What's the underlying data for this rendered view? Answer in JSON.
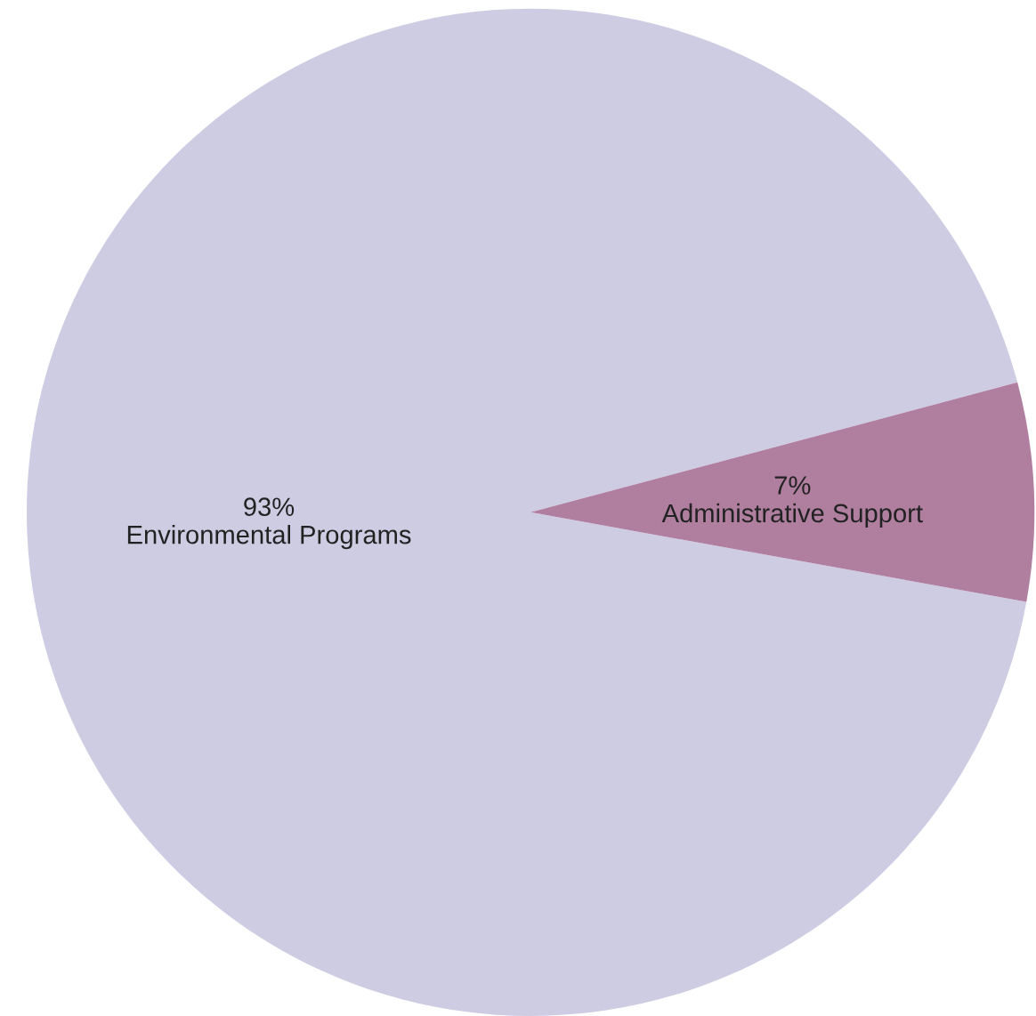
{
  "chart_data": {
    "type": "pie",
    "categories": [
      "Environmental Programs",
      "Administrative Support"
    ],
    "values": [
      93,
      7
    ],
    "value_labels": [
      "93%",
      "7%"
    ],
    "colors": [
      "#cdcce2",
      "#b07fa0"
    ]
  }
}
